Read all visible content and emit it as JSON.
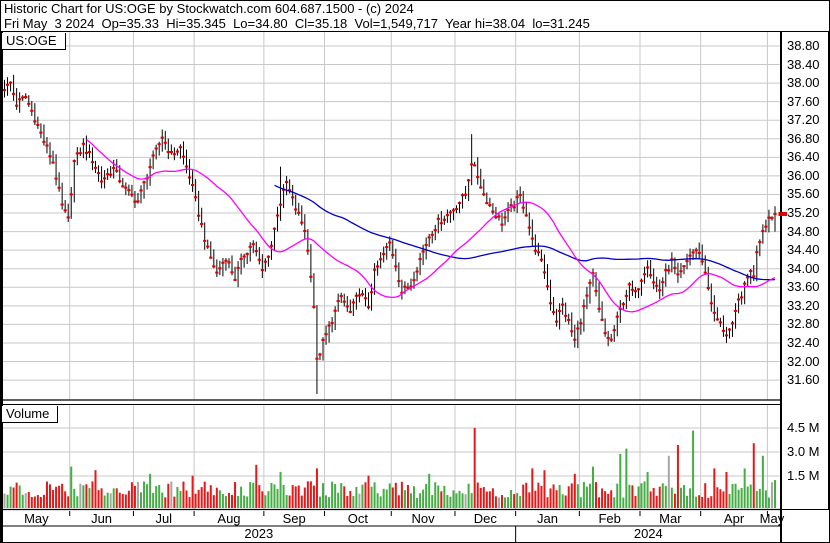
{
  "header": {
    "title": "Historic Chart for US:OGE by Stockwatch.com 604.687.1500 - (c) 2024",
    "quote_line": "Fri May  3 2024  Op=35.33  Hi=35.345  Lo=34.80  Cl=35.18  Vol=1,549,717  Year hi=38.04  lo=31.245"
  },
  "price_panel": {
    "symbol_label": "US:OGE"
  },
  "volume_panel": {
    "label": "Volume"
  },
  "chart_data": {
    "type": "ohlc+volume",
    "symbol": "US:OGE",
    "last": {
      "date": "Fri May 3 2024",
      "open": 35.33,
      "high": 35.345,
      "low": 34.8,
      "close": 35.18,
      "volume": "1,549,717",
      "year_high": 38.04,
      "year_low": 31.245
    },
    "y_axis": {
      "ticks": [
        "38.80",
        "38.40",
        "38.00",
        "37.60",
        "37.20",
        "36.80",
        "36.40",
        "36.00",
        "35.60",
        "35.20",
        "34.80",
        "34.40",
        "34.00",
        "33.60",
        "33.20",
        "32.80",
        "32.40",
        "32.00",
        "31.60"
      ]
    },
    "volume_axis": {
      "ticks": [
        {
          "value": 4.5,
          "label": "4.5 M"
        },
        {
          "value": 3.0,
          "label": "3.0 M"
        },
        {
          "value": 1.5,
          "label": "1.5 M"
        }
      ]
    },
    "months": [
      {
        "label": "May",
        "days": 22
      },
      {
        "label": "Jun",
        "days": 21
      },
      {
        "label": "Jul",
        "days": 20
      },
      {
        "label": "Aug",
        "days": 23
      },
      {
        "label": "Sep",
        "days": 20
      },
      {
        "label": "Oct",
        "days": 22
      },
      {
        "label": "Nov",
        "days": 21
      },
      {
        "label": "Dec",
        "days": 20
      },
      {
        "label": "Jan",
        "days": 21
      },
      {
        "label": "Feb",
        "days": 20
      },
      {
        "label": "Mar",
        "days": 20
      },
      {
        "label": "Apr",
        "days": 22
      },
      {
        "label": "May",
        "days": 3
      }
    ],
    "years": [
      {
        "label": "2023",
        "month_count": 8
      },
      {
        "label": "2024",
        "month_count": 5
      }
    ],
    "series": {
      "close_anchors": [
        [
          0,
          37.85
        ],
        [
          2,
          38.0
        ],
        [
          4,
          37.55
        ],
        [
          7,
          37.7
        ],
        [
          10,
          37.25
        ],
        [
          13,
          36.75
        ],
        [
          16,
          36.3
        ],
        [
          19,
          35.35
        ],
        [
          21,
          35.05
        ],
        [
          23,
          36.3
        ],
        [
          26,
          36.65
        ],
        [
          29,
          36.35
        ],
        [
          32,
          35.9
        ],
        [
          36,
          36.15
        ],
        [
          40,
          35.7
        ],
        [
          44,
          35.45
        ],
        [
          48,
          36.2
        ],
        [
          52,
          36.85
        ],
        [
          55,
          36.45
        ],
        [
          58,
          36.6
        ],
        [
          61,
          36.0
        ],
        [
          64,
          35.2
        ],
        [
          67,
          34.4
        ],
        [
          70,
          33.9
        ],
        [
          73,
          34.25
        ],
        [
          76,
          33.8
        ],
        [
          79,
          34.3
        ],
        [
          82,
          34.55
        ],
        [
          85,
          33.95
        ],
        [
          88,
          34.5
        ],
        [
          90,
          35.2
        ],
        [
          93,
          35.85
        ],
        [
          96,
          35.3
        ],
        [
          99,
          34.85
        ],
        [
          101,
          33.9
        ],
        [
          102,
          33.2
        ],
        [
          103,
          32.0
        ],
        [
          105,
          32.4
        ],
        [
          108,
          32.9
        ],
        [
          111,
          33.4
        ],
        [
          114,
          33.05
        ],
        [
          117,
          33.5
        ],
        [
          120,
          33.2
        ],
        [
          122,
          33.9
        ],
        [
          125,
          34.3
        ],
        [
          127,
          34.55
        ],
        [
          129,
          34.1
        ],
        [
          131,
          33.5
        ],
        [
          134,
          33.65
        ],
        [
          137,
          34.2
        ],
        [
          140,
          34.7
        ],
        [
          143,
          35.0
        ],
        [
          146,
          35.15
        ],
        [
          149,
          35.35
        ],
        [
          152,
          35.6
        ],
        [
          154,
          36.3
        ],
        [
          156,
          36.0
        ],
        [
          158,
          35.6
        ],
        [
          161,
          35.25
        ],
        [
          164,
          35.0
        ],
        [
          167,
          35.3
        ],
        [
          170,
          35.55
        ],
        [
          172,
          35.2
        ],
        [
          174,
          34.6
        ],
        [
          176,
          34.3
        ],
        [
          178,
          33.95
        ],
        [
          180,
          33.3
        ],
        [
          182,
          32.9
        ],
        [
          184,
          33.2
        ],
        [
          186,
          32.85
        ],
        [
          188,
          32.45
        ],
        [
          190,
          32.9
        ],
        [
          192,
          33.4
        ],
        [
          194,
          33.85
        ],
        [
          196,
          33.1
        ],
        [
          198,
          32.6
        ],
        [
          200,
          32.45
        ],
        [
          202,
          32.9
        ],
        [
          204,
          33.3
        ],
        [
          206,
          33.6
        ],
        [
          208,
          33.45
        ],
        [
          210,
          33.8
        ],
        [
          212,
          34.1
        ],
        [
          214,
          33.7
        ],
        [
          216,
          33.55
        ],
        [
          218,
          33.9
        ],
        [
          220,
          34.15
        ],
        [
          222,
          33.8
        ],
        [
          224,
          34.0
        ],
        [
          226,
          34.3
        ],
        [
          228,
          34.4
        ],
        [
          230,
          34.2
        ],
        [
          232,
          33.6
        ],
        [
          234,
          33.0
        ],
        [
          236,
          32.8
        ],
        [
          238,
          32.6
        ],
        [
          240,
          32.75
        ],
        [
          242,
          33.3
        ],
        [
          244,
          33.6
        ],
        [
          246,
          34.0
        ],
        [
          247,
          33.8
        ],
        [
          248,
          34.4
        ],
        [
          250,
          34.85
        ],
        [
          252,
          35.1
        ],
        [
          254,
          35.18
        ]
      ],
      "day_highs": {
        "2": 38.04,
        "52": 37.0,
        "91": 36.2,
        "154": 36.9,
        "254": 35.345
      },
      "day_lows": {
        "103": 31.3,
        "188": 32.3,
        "238": 32.4,
        "254": 34.8
      },
      "ma_fast": {
        "window": 28,
        "color": "#ff00ff"
      },
      "ma_slow": {
        "window": 90,
        "color": "#0000c8"
      },
      "volume_spikes": {
        "22": 2.3,
        "30": 2.1,
        "48": 1.9,
        "62": 1.8,
        "83": 2.4,
        "91": 2.0,
        "103": 2.2,
        "120": 1.8,
        "140": 1.9,
        "155": 4.45,
        "174": 2.2,
        "178": 2.1,
        "188": 1.9,
        "194": 2.3,
        "203": 3.0,
        "205": 3.3,
        "212": 2.0,
        "219": 2.9,
        "222": 3.5,
        "227": 4.3,
        "234": 2.2,
        "238": 2.0,
        "244": 2.2,
        "247": 3.6,
        "250": 2.9,
        "254": 1.55
      }
    },
    "colors": {
      "bar": "#000000",
      "close_tick": "#dd0000",
      "volume_up": "#44ad44",
      "volume_down": "#e81717",
      "volume_flat": "#a6a6a6",
      "grid": "#c8c8c8",
      "ma_fast": "#ff00ff",
      "ma_slow": "#0000c8",
      "marker": "#dd0000"
    }
  }
}
